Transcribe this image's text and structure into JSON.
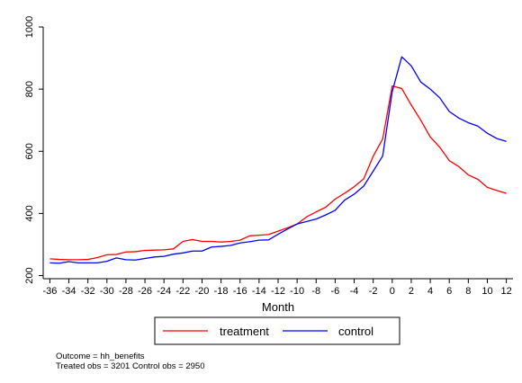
{
  "chart_data": {
    "type": "line",
    "title": "",
    "xlabel": "Month",
    "ylabel": "",
    "x": [
      -36,
      -35,
      -34,
      -33,
      -32,
      -31,
      -30,
      -29,
      -28,
      -27,
      -26,
      -25,
      -24,
      -23,
      -22,
      -21,
      -20,
      -19,
      -18,
      -17,
      -16,
      -15,
      -14,
      -13,
      -12,
      -11,
      -10,
      -9,
      -8,
      -7,
      -6,
      -5,
      -4,
      -3,
      -2,
      -1,
      0,
      1,
      2,
      3,
      4,
      5,
      6,
      7,
      8,
      9,
      10,
      11,
      12
    ],
    "xticks": [
      -36,
      -34,
      -32,
      -30,
      -28,
      -26,
      -24,
      -22,
      -20,
      -18,
      -16,
      -14,
      -12,
      -10,
      -8,
      -6,
      -4,
      -2,
      0,
      2,
      4,
      6,
      8,
      10,
      12
    ],
    "yticks": [
      200,
      400,
      600,
      800,
      1000
    ],
    "xlim": [
      -36.7,
      12.7
    ],
    "ylim": [
      190,
      1000
    ],
    "grid": false,
    "legend_position": "bottom",
    "series": [
      {
        "name": "treatment",
        "color": "#ff0000",
        "values": [
          254,
          252,
          251,
          251,
          252,
          258,
          267,
          268,
          276,
          277,
          281,
          282,
          283,
          286,
          310,
          316,
          310,
          310,
          308,
          310,
          314,
          328,
          330,
          332,
          343,
          354,
          366,
          389,
          405,
          420,
          446,
          465,
          486,
          511,
          584,
          640,
          810,
          802,
          749,
          700,
          646,
          613,
          570,
          551,
          524,
          510,
          484,
          474,
          465
        ]
      },
      {
        "name": "control",
        "color": "#0000ff",
        "values": [
          241,
          240,
          245,
          241,
          241,
          241,
          246,
          257,
          251,
          250,
          255,
          260,
          262,
          269,
          273,
          279,
          279,
          292,
          294,
          297,
          305,
          309,
          314,
          315,
          333,
          350,
          366,
          374,
          382,
          395,
          410,
          443,
          462,
          488,
          536,
          585,
          792,
          904,
          875,
          823,
          800,
          772,
          728,
          707,
          692,
          681,
          658,
          641,
          632
        ]
      }
    ],
    "notes": [
      "Outcome = hh_benefits",
      "Treated obs = 3201 Control obs = 2950"
    ]
  }
}
